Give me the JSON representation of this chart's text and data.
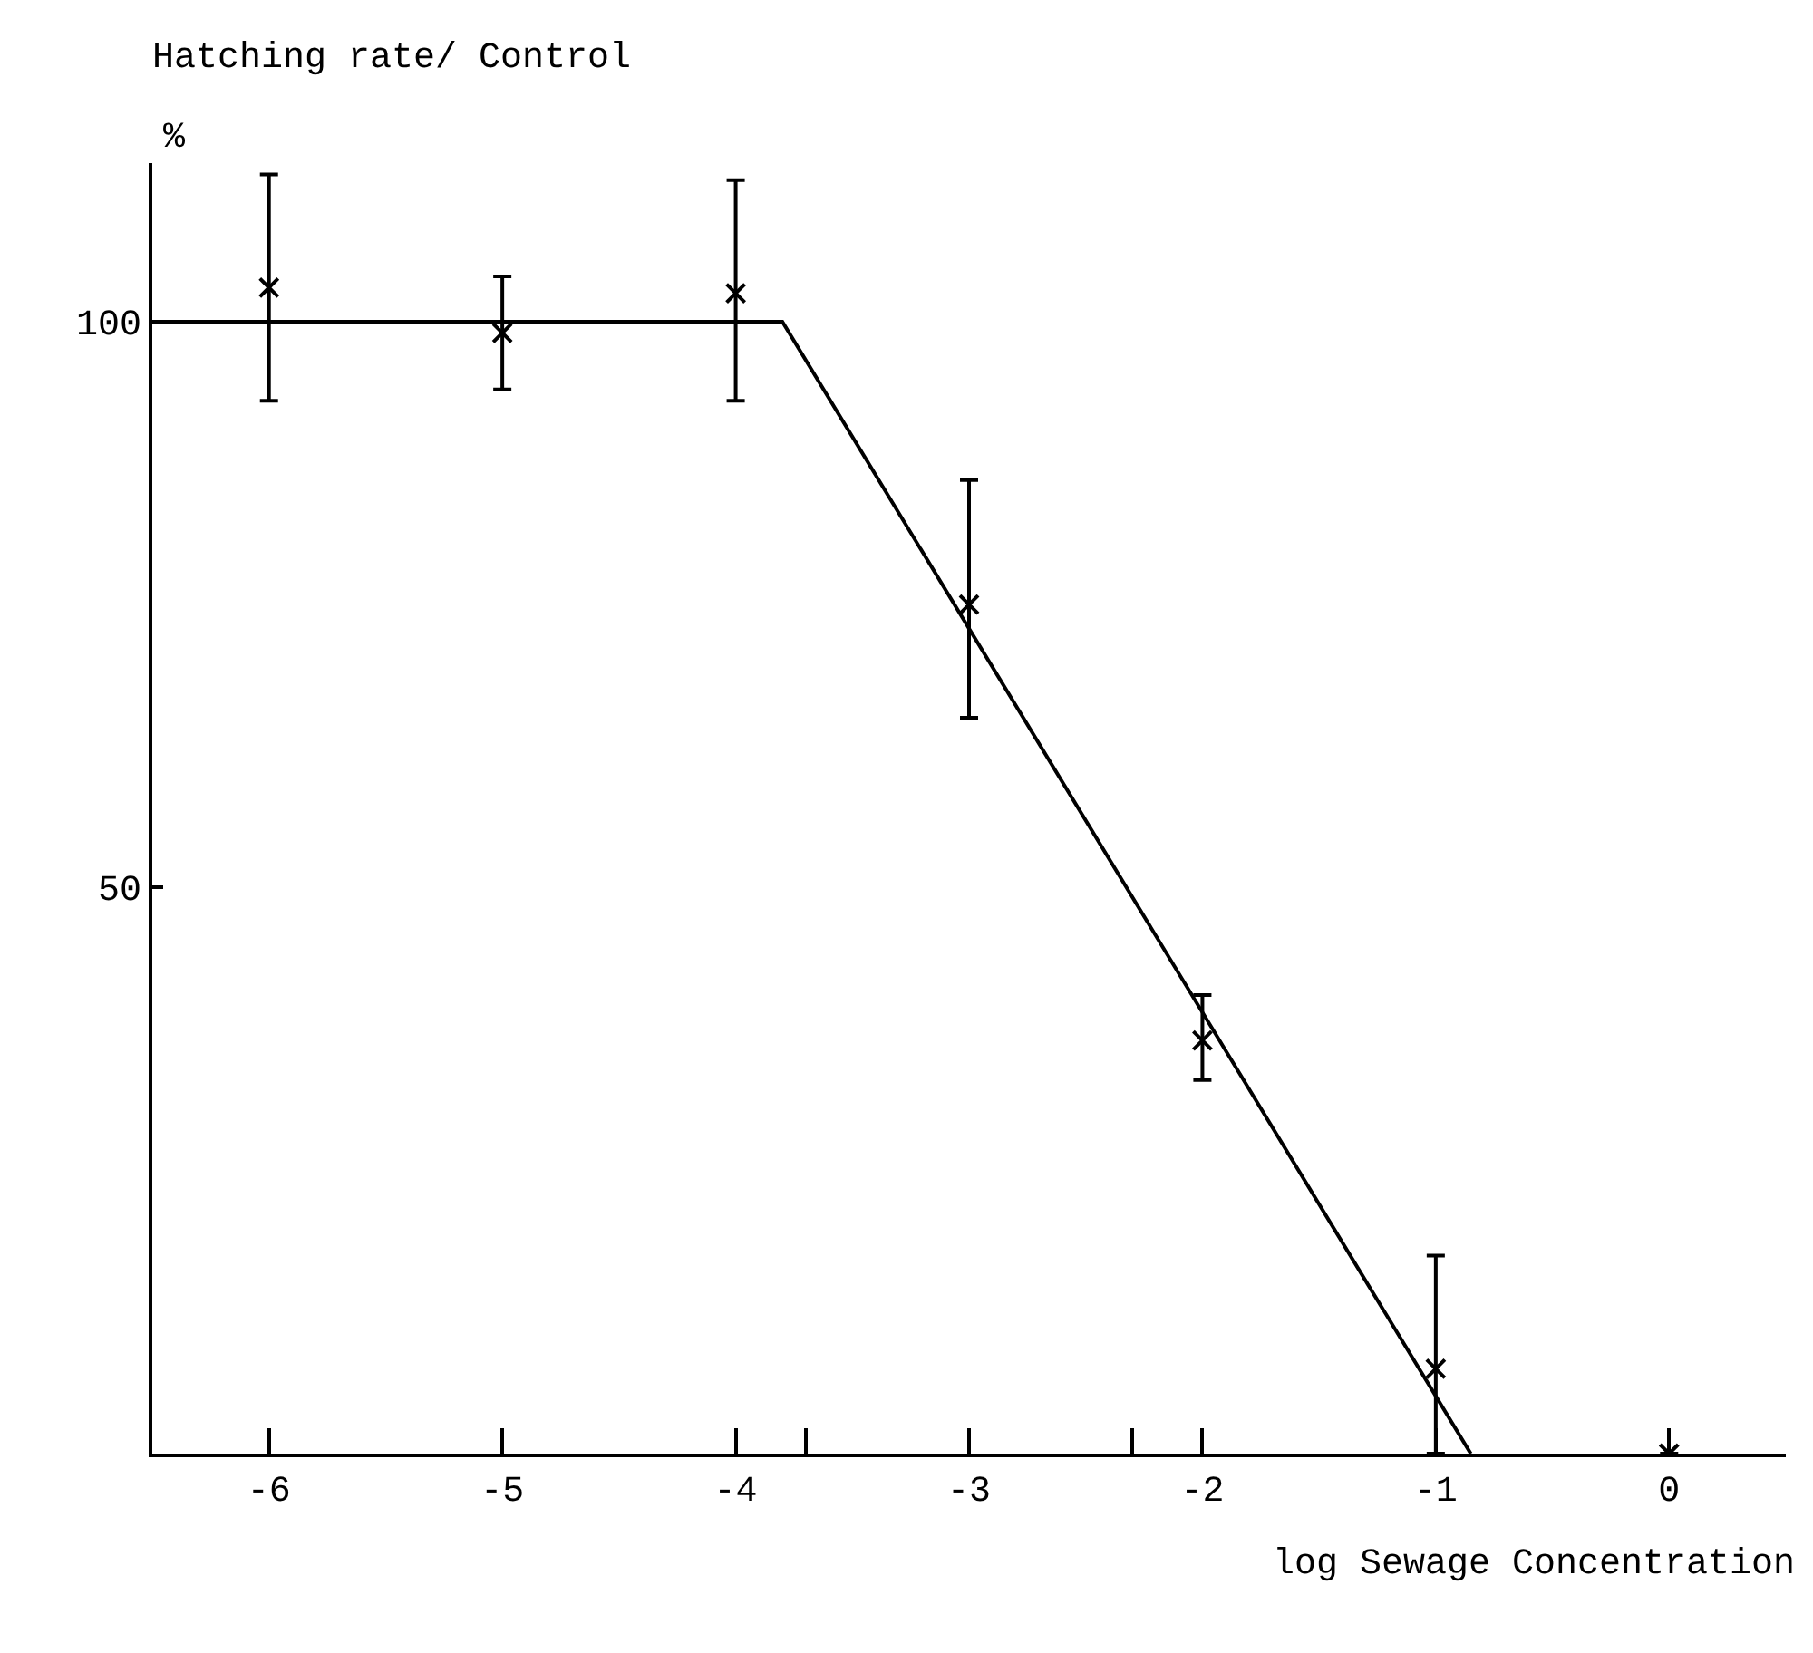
{
  "chart_data": {
    "type": "scatter",
    "title": "Hatching rate/ Control",
    "ylabel": "%",
    "xlabel": "log Sewage Concentration",
    "xlim": [
      -6.5,
      0.5
    ],
    "xticks": [
      -6,
      -5,
      -4,
      {
        "value": -3.7,
        "label": null
      },
      -3,
      {
        "value": -2.3,
        "label": null
      },
      -2,
      -1,
      0
    ],
    "ylim": [
      0,
      114
    ],
    "yticks": [
      50,
      100
    ],
    "grid": false,
    "series": [
      {
        "color": "#000000",
        "marker": "cross",
        "x": [
          -6,
          -5,
          -4,
          -3,
          -2,
          -1,
          0
        ],
        "values": [
          103,
          99,
          102.5,
          75,
          36.5,
          7.5,
          0
        ],
        "errors": [
          [
            93,
            113
          ],
          [
            94,
            104
          ],
          [
            93,
            112.5
          ],
          [
            65,
            86
          ],
          [
            33,
            40.5
          ],
          [
            0,
            17.5
          ],
          null
        ]
      },
      {
        "type": "line",
        "color": "#000000",
        "line_style": "solid",
        "x": [
          -6.5,
          -3.8,
          -0.85
        ],
        "values": [
          100,
          100,
          0
        ]
      }
    ]
  }
}
